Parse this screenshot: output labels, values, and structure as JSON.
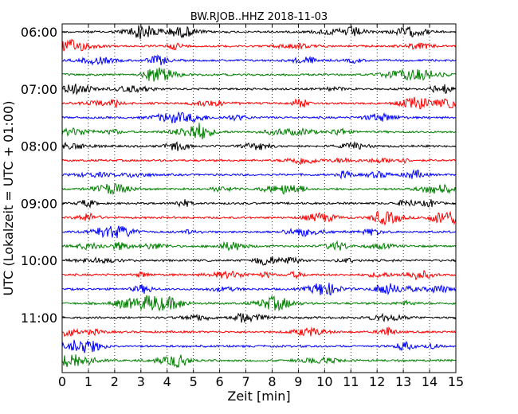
{
  "chart_data": {
    "type": "line",
    "title": "BW.RJOB..HHZ 2018-11-03",
    "xlabel": "Zeit  [min]",
    "ylabel": "UTC (Lokalzeit = UTC + 01:00)",
    "xlim": [
      0,
      15
    ],
    "x_ticks": [
      "0",
      "1",
      "2",
      "3",
      "4",
      "5",
      "6",
      "7",
      "8",
      "9",
      "10",
      "11",
      "12",
      "13",
      "14",
      "15"
    ],
    "y_tick_labels": [
      "06:00",
      "07:00",
      "08:00",
      "09:00",
      "10:00",
      "11:00"
    ],
    "grid": "vertical dotted",
    "trace_colors": [
      "#000000",
      "#ff0000",
      "#0000ff",
      "#008000"
    ],
    "trace_start_times": [
      "06:00",
      "06:15",
      "06:30",
      "06:45",
      "07:00",
      "07:15",
      "07:30",
      "07:45",
      "08:00",
      "08:15",
      "08:30",
      "08:45",
      "09:00",
      "09:15",
      "09:30",
      "09:45",
      "10:00",
      "10:15",
      "10:30",
      "10:45",
      "11:00",
      "11:15",
      "11:30",
      "11:45"
    ]
  }
}
